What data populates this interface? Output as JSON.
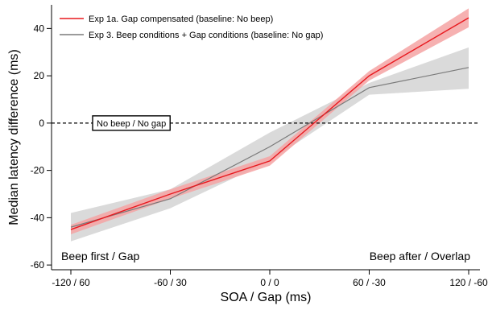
{
  "chart_data": {
    "type": "line",
    "xlabel": "SOA / Gap (ms)",
    "ylabel": "Median latency difference (ms)",
    "x": [
      -120,
      -60,
      0,
      60,
      120
    ],
    "x_tick_labels": [
      "-120 / 60",
      "-60 / 30",
      "0 / 0",
      "60 / -30",
      "120 / -60"
    ],
    "xlim": [
      -120,
      120
    ],
    "ylim": [
      -62,
      50
    ],
    "y_ticks": [
      -60,
      -40,
      -20,
      0,
      20,
      40
    ],
    "grid": false,
    "legend_position": "top-left",
    "series": [
      {
        "name": "Exp 1a. Gap compensated (baseline: No beep)",
        "color": "#e8191f",
        "band_color": "#f4a3a3",
        "values": [
          -45,
          -30,
          -16,
          20,
          44.5
        ],
        "lower": [
          -47,
          -32,
          -18,
          18,
          40.5
        ],
        "upper": [
          -43,
          -28,
          -14,
          22,
          48.5
        ]
      },
      {
        "name": "Exp 3. Beep conditions + Gap conditions (baseline: No gap)",
        "color": "#7a7a7a",
        "band_color": "#d4d4d4",
        "values": [
          -44,
          -32,
          -10,
          15,
          23.5
        ],
        "lower": [
          -50,
          -36,
          -16,
          12,
          14.5
        ],
        "upper": [
          -38,
          -28,
          -4,
          17,
          32
        ]
      }
    ],
    "reference_line": {
      "y": 0,
      "label": "No beep / No gap"
    },
    "annotations": {
      "left": "Beep first / Gap",
      "right": "Beep after / Overlap"
    }
  }
}
